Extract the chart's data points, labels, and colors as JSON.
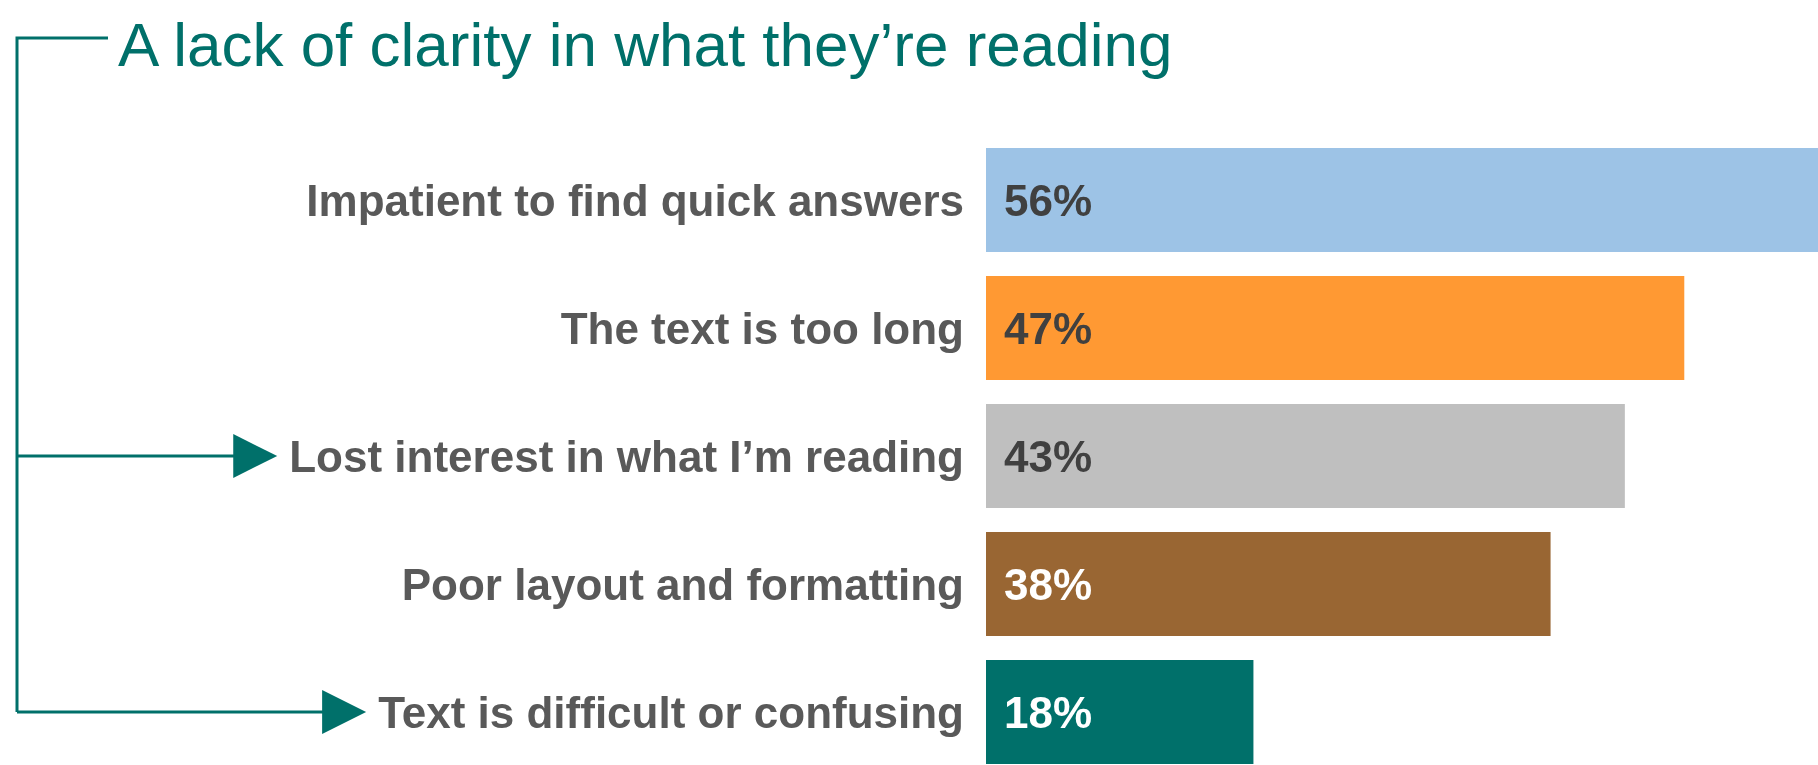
{
  "chart_data": {
    "type": "bar",
    "orientation": "horizontal",
    "title": "A lack of clarity in what they’re reading",
    "categories": [
      "Impatient to find quick answers",
      "The text is too long",
      "Lost interest in what I’m reading",
      "Poor layout and formatting",
      "Text is difficult or confusing"
    ],
    "values": [
      56,
      47,
      43,
      38,
      18
    ],
    "colors": [
      "#9dc3e6",
      "#ff9933",
      "#bfbfbf",
      "#996633",
      "#00706a"
    ],
    "value_labels": [
      "56%",
      "47%",
      "43%",
      "38%",
      "18%"
    ]
  }
}
